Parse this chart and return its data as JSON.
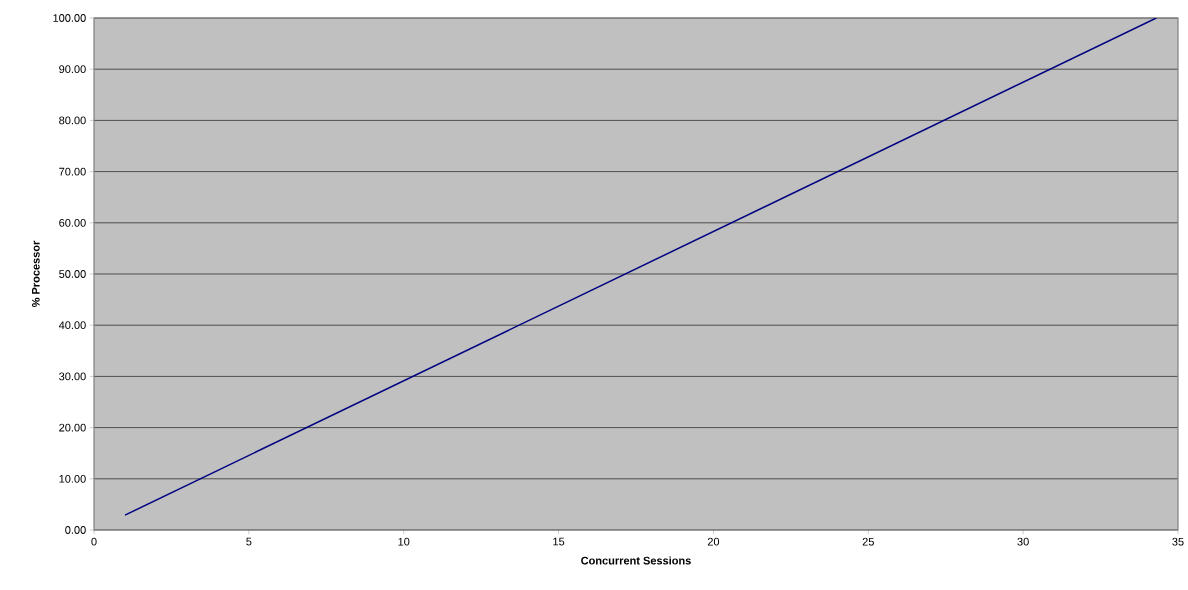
{
  "chart_data": {
    "type": "line",
    "xlabel": "Concurrent Sessions",
    "ylabel": "% Processor",
    "series": [
      {
        "color": "#000080",
        "x": [
          1,
          34.3
        ],
        "values": [
          2.9,
          100
        ]
      }
    ],
    "xlim": [
      0,
      35
    ],
    "xticks": [
      0,
      5,
      10,
      15,
      20,
      25,
      30,
      35
    ],
    "ylim": [
      0,
      100
    ],
    "yticks": [
      {
        "value": 0,
        "label": "0.00"
      },
      {
        "value": 10,
        "label": "10.00"
      },
      {
        "value": 20,
        "label": "20.00"
      },
      {
        "value": 30,
        "label": "30.00"
      },
      {
        "value": 40,
        "label": "40.00"
      },
      {
        "value": 50,
        "label": "50.00"
      },
      {
        "value": 60,
        "label": "60.00"
      },
      {
        "value": 70,
        "label": "70.00"
      },
      {
        "value": 80,
        "label": "80.00"
      },
      {
        "value": 90,
        "label": "90.00"
      },
      {
        "value": 100,
        "label": "100.00"
      }
    ],
    "grid": "y",
    "marker": "none",
    "line_style": "solid"
  }
}
